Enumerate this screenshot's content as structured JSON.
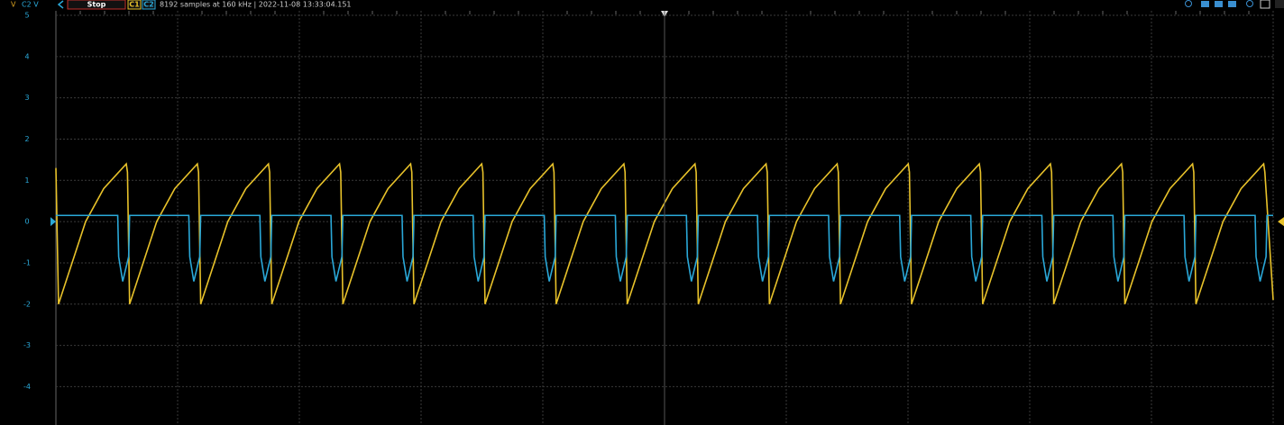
{
  "toolbar": {
    "c1_axis_label": "V",
    "c2_axis_label": "C2 V",
    "run_state": "Stop",
    "status": "8192 samples at 160 kHz | 2022-11-08 13:33:04.151"
  },
  "chart_data": {
    "type": "line",
    "xlim": [
      0,
      51.2
    ],
    "ylim": [
      -4.93,
      5.11
    ],
    "yticks": [
      -4,
      -3,
      -2,
      -1,
      0,
      1,
      2,
      3,
      4,
      5
    ],
    "grid": true,
    "series": [
      {
        "name": "C1",
        "color": "#e8c22a",
        "x": [
          0,
          0.11,
          1.25,
          2.01,
          2.96,
          3.01,
          3.1,
          4.24,
          5.0,
          5.95,
          6.0,
          6.09,
          7.23,
          7.99,
          8.94,
          8.99,
          9.08,
          10.22,
          10.98,
          11.93,
          11.98,
          12.07,
          13.21,
          13.97,
          14.92,
          14.97,
          15.06,
          16.2,
          16.96,
          17.91,
          17.96,
          18.05,
          19.19,
          19.95,
          20.9,
          20.95,
          21.04,
          22.18,
          22.94,
          23.89,
          23.94,
          24.03,
          25.17,
          25.93,
          26.88,
          26.93,
          27.02,
          28.16,
          28.92,
          29.87,
          29.92,
          30.01,
          31.15,
          31.91,
          32.86,
          32.91,
          33.0,
          34.14,
          34.9,
          35.85,
          35.9,
          35.99,
          37.13,
          37.89,
          38.84,
          38.89,
          38.98,
          40.12,
          40.88,
          41.83,
          41.88,
          41.97,
          43.11,
          43.87,
          44.82,
          44.87,
          44.96,
          46.1,
          46.86,
          47.81,
          47.86,
          47.95,
          49.09,
          49.85,
          50.8,
          50.85,
          51.2
        ],
        "values": [
          1.3,
          -2,
          0,
          0.8,
          1.4,
          1.2,
          -2,
          0,
          0.8,
          1.4,
          1.2,
          -2,
          0,
          0.8,
          1.4,
          1.2,
          -2,
          0,
          0.8,
          1.4,
          1.2,
          -2,
          0,
          0.8,
          1.4,
          1.2,
          -2,
          0,
          0.8,
          1.4,
          1.2,
          -2,
          0,
          0.8,
          1.4,
          1.2,
          -2,
          0,
          0.8,
          1.4,
          1.2,
          -2,
          0,
          0.8,
          1.4,
          1.2,
          -2,
          0,
          0.8,
          1.4,
          1.2,
          -2,
          0,
          0.8,
          1.4,
          1.2,
          -2,
          0,
          0.8,
          1.4,
          1.2,
          -2,
          0,
          0.8,
          1.4,
          1.2,
          -2,
          0,
          0.8,
          1.4,
          1.2,
          -2,
          0,
          0.8,
          1.4,
          1.2,
          -2,
          0,
          0.8,
          1.4,
          1.2,
          -2,
          0,
          0.8,
          1.4,
          1.2,
          -1.9
        ]
      },
      {
        "name": "C2",
        "color": "#2aa8d8",
        "x": [
          0,
          2.6,
          2.64,
          2.81,
          3.06,
          3.1,
          5.59,
          5.63,
          5.8,
          6.05,
          6.09,
          8.58,
          8.62,
          8.79,
          9.04,
          9.08,
          11.57,
          11.61,
          11.78,
          12.03,
          12.07,
          14.56,
          14.6,
          14.77,
          15.02,
          15.06,
          17.55,
          17.59,
          17.76,
          18.01,
          18.05,
          20.54,
          20.58,
          20.75,
          21.0,
          21.04,
          23.53,
          23.57,
          23.74,
          23.99,
          24.03,
          26.52,
          26.56,
          26.73,
          26.98,
          27.02,
          29.51,
          29.55,
          29.72,
          29.97,
          30.01,
          32.5,
          32.54,
          32.71,
          32.96,
          33.0,
          35.49,
          35.53,
          35.7,
          35.95,
          35.99,
          38.48,
          38.52,
          38.69,
          38.94,
          38.98,
          41.47,
          41.51,
          41.68,
          41.93,
          41.97,
          44.46,
          44.5,
          44.67,
          44.92,
          44.96,
          47.45,
          47.49,
          47.66,
          47.91,
          47.95,
          50.44,
          50.48,
          50.65,
          50.9,
          50.94,
          51.2
        ],
        "values": [
          0.15,
          0.15,
          -0.85,
          -1.45,
          -0.85,
          0.15,
          0.15,
          -0.85,
          -1.45,
          -0.85,
          0.15,
          0.15,
          -0.85,
          -1.45,
          -0.85,
          0.15,
          0.15,
          -0.85,
          -1.45,
          -0.85,
          0.15,
          0.15,
          -0.85,
          -1.45,
          -0.85,
          0.15,
          0.15,
          -0.85,
          -1.45,
          -0.85,
          0.15,
          0.15,
          -0.85,
          -1.45,
          -0.85,
          0.15,
          0.15,
          -0.85,
          -1.45,
          -0.85,
          0.15,
          0.15,
          -0.85,
          -1.45,
          -0.85,
          0.15,
          0.15,
          -0.85,
          -1.45,
          -0.85,
          0.15,
          0.15,
          -0.85,
          -1.45,
          -0.85,
          0.15,
          0.15,
          -0.85,
          -1.45,
          -0.85,
          0.15,
          0.15,
          -0.85,
          -1.45,
          -0.85,
          0.15,
          0.15,
          -0.85,
          -1.45,
          -0.85,
          0.15,
          0.15,
          -0.85,
          -1.45,
          -0.85,
          0.15,
          0.15,
          -0.85,
          -1.45,
          -0.85,
          0.15,
          0.15,
          -0.85,
          -1.45,
          -0.85,
          0.15,
          0.15
        ]
      }
    ]
  }
}
